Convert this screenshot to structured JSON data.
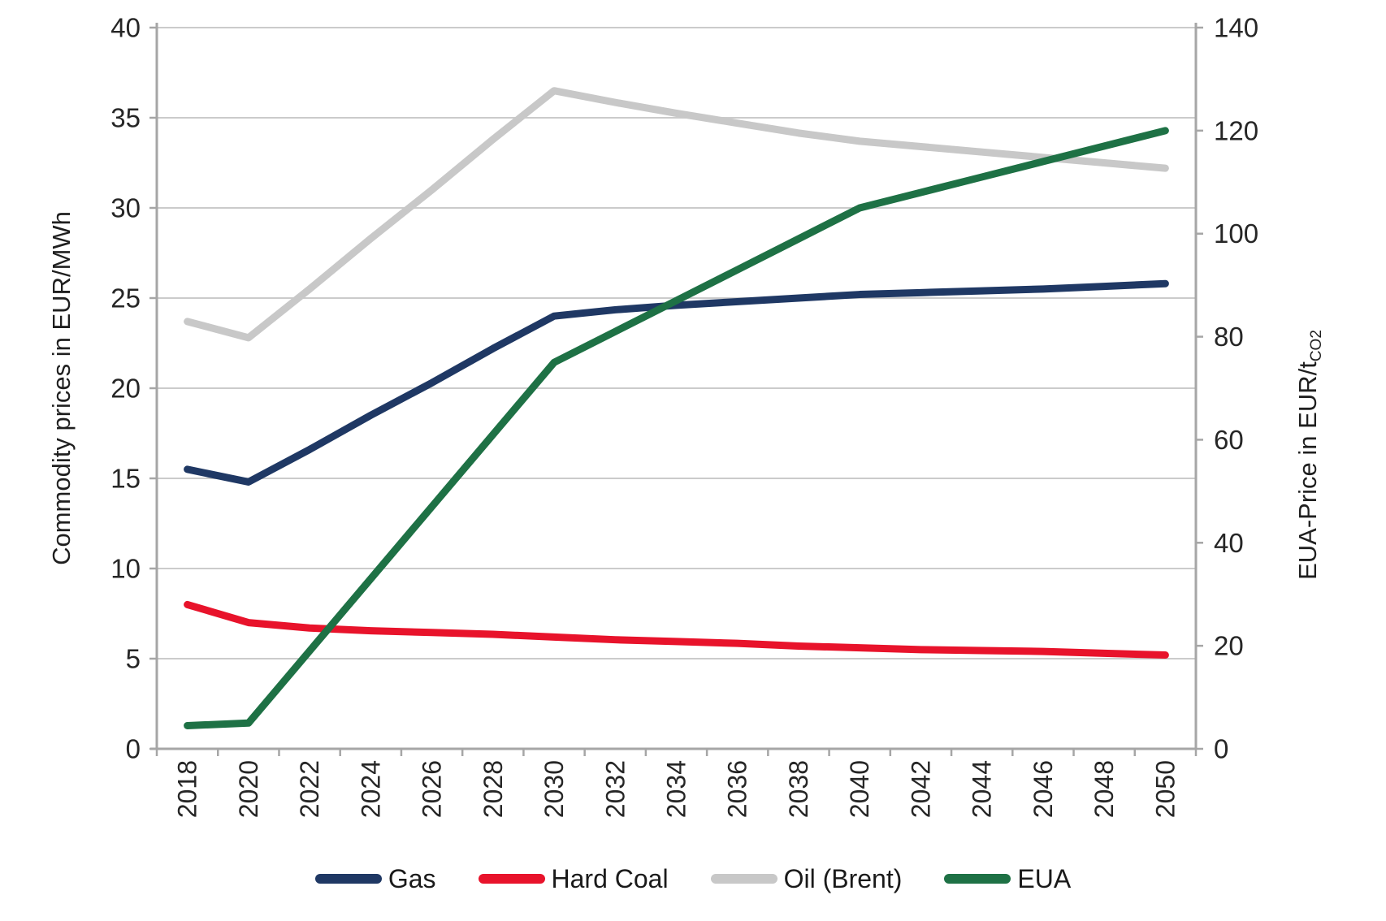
{
  "chart_data": {
    "type": "line",
    "title": "",
    "categories": [
      2018,
      2020,
      2022,
      2024,
      2026,
      2028,
      2030,
      2032,
      2034,
      2036,
      2038,
      2040,
      2042,
      2044,
      2046,
      2048,
      2050
    ],
    "series": [
      {
        "name": "Gas",
        "axis": "left",
        "color": "#1f3864",
        "values": [
          15.5,
          14.8,
          16.6,
          18.5,
          20.3,
          22.2,
          24.0,
          24.35,
          24.6,
          24.8,
          25.0,
          25.2,
          25.3,
          25.4,
          25.5,
          25.65,
          25.8
        ]
      },
      {
        "name": "Hard Coal",
        "axis": "left",
        "color": "#e8132b",
        "values": [
          8.0,
          7.0,
          6.7,
          6.55,
          6.45,
          6.35,
          6.2,
          6.05,
          5.95,
          5.85,
          5.7,
          5.6,
          5.5,
          5.45,
          5.4,
          5.3,
          5.2
        ]
      },
      {
        "name": "Oil (Brent)",
        "axis": "left",
        "color": "#c8c8c8",
        "values": [
          23.7,
          22.8,
          25.5,
          28.3,
          31.0,
          33.8,
          36.5,
          35.85,
          35.25,
          34.7,
          34.15,
          33.7,
          33.4,
          33.1,
          32.8,
          32.5,
          32.2
        ]
      },
      {
        "name": "EUA",
        "axis": "right",
        "color": "#1e7145",
        "values": [
          4.5,
          5.0,
          19,
          33,
          47,
          61,
          75,
          81,
          87,
          93,
          99,
          105,
          108,
          111,
          114,
          117,
          120
        ]
      }
    ],
    "left_axis": {
      "label": "Commodity prices in EUR/MWh",
      "min": 0,
      "max": 40,
      "step": 5,
      "ticks": [
        0,
        5,
        10,
        15,
        20,
        25,
        30,
        35,
        40
      ]
    },
    "right_axis": {
      "label_main": "EUA-Price in EUR/t",
      "label_sub": "CO2",
      "min": 0,
      "max": 140,
      "step": 20,
      "ticks": [
        0,
        20,
        40,
        60,
        80,
        100,
        120,
        140
      ]
    },
    "grid": true,
    "legend_position": "bottom"
  },
  "style": {
    "grid_color": "#cbcbcb",
    "axis_color": "#a6a6a6",
    "tick_label_color": "#262626",
    "line_width": 9
  }
}
